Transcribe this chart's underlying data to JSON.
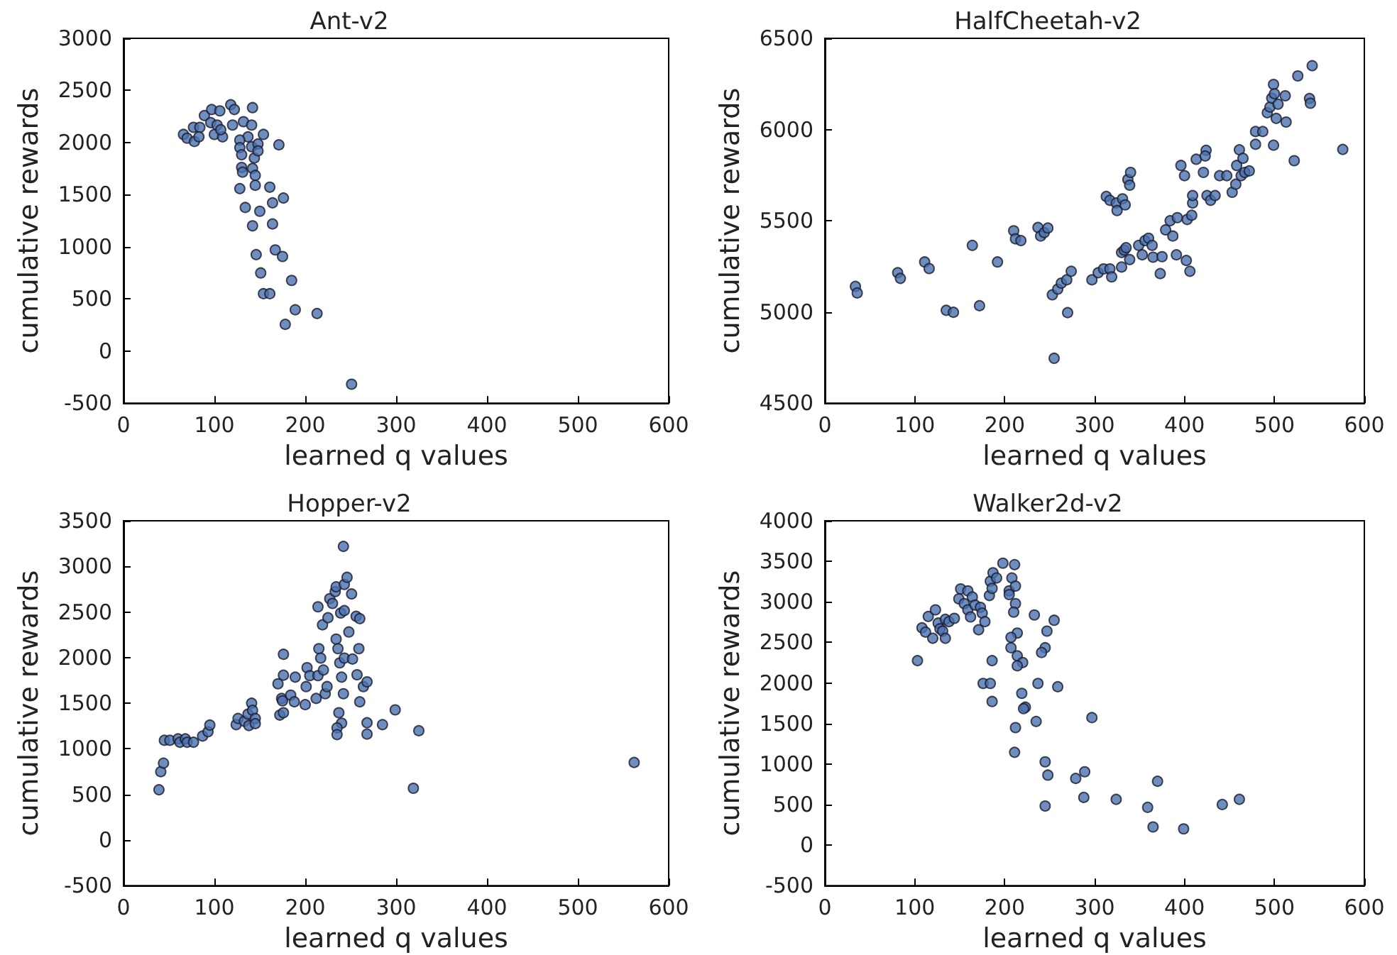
{
  "chart_data": [
    {
      "type": "scatter",
      "title": "Ant-v2",
      "xlabel": "learned q values",
      "ylabel": "cumulative rewards",
      "xlim": [
        0,
        600
      ],
      "xticks": [
        0,
        100,
        200,
        300,
        400,
        500,
        600
      ],
      "ylim": [
        -500,
        3000
      ],
      "yticks": [
        -500,
        0,
        500,
        1000,
        1500,
        2000,
        2500,
        3000
      ],
      "grid": false,
      "marker": "circle",
      "series": [
        {
          "color": "#4a72b0",
          "x": [
            66,
            70,
            78,
            77,
            84,
            83,
            89,
            97,
            96,
            100,
            103,
            106,
            109,
            107,
            118,
            122,
            120,
            132,
            142,
            141,
            137,
            154,
            128,
            128,
            141,
            148,
            171,
            130,
            144,
            148,
            130,
            131,
            142,
            145,
            128,
            145,
            161,
            176,
            134,
            164,
            150,
            142,
            164,
            146,
            167,
            175,
            151,
            185,
            154,
            161,
            189,
            213,
            178,
            251
          ],
          "values": [
            2078,
            2042,
            2010,
            2146,
            2146,
            2055,
            2259,
            2317,
            2191,
            2078,
            2168,
            2304,
            2055,
            2123,
            2363,
            2317,
            2168,
            2200,
            2335,
            2168,
            2055,
            2078,
            2024,
            1951,
            1960,
            1987,
            1978,
            1883,
            1852,
            1920,
            1761,
            1716,
            1752,
            1685,
            1558,
            1590,
            1572,
            1468,
            1377,
            1422,
            1341,
            1201,
            1219,
            925,
            970,
            907,
            749,
            677,
            550,
            550,
            396,
            360,
            256,
            -318
          ]
        }
      ]
    },
    {
      "type": "scatter",
      "title": "HalfCheetah-v2",
      "xlabel": "learned q values",
      "ylabel": "cumulative rewards",
      "xlim": [
        0,
        600
      ],
      "xticks": [
        0,
        100,
        200,
        300,
        400,
        500,
        600
      ],
      "ylim": [
        4500,
        6500
      ],
      "yticks": [
        4500,
        5000,
        5500,
        6000,
        6500
      ],
      "grid": false,
      "marker": "circle",
      "series": [
        {
          "color": "#4a72b0",
          "x": [
            34,
            36,
            81,
            84,
            111,
            116,
            135,
            143,
            164,
            172,
            192,
            210,
            212,
            218,
            237,
            240,
            244,
            248,
            253,
            259,
            263,
            255,
            269,
            270,
            274,
            297,
            304,
            310,
            317,
            319,
            313,
            317,
            324,
            325,
            330,
            330,
            333,
            331,
            334,
            337,
            339,
            340,
            335,
            339,
            349,
            353,
            356,
            360,
            364,
            365,
            373,
            375,
            379,
            384,
            387,
            391,
            392,
            396,
            400,
            402,
            403,
            406,
            408,
            409,
            409,
            413,
            421,
            424,
            423,
            425,
            429,
            434,
            439,
            447,
            453,
            458,
            457,
            461,
            465,
            463,
            467,
            472,
            479,
            479,
            487,
            492,
            495,
            497,
            499,
            500,
            499,
            502,
            504,
            512,
            513,
            522,
            526,
            539,
            540,
            542,
            576
          ],
          "values": [
            5140,
            5104,
            5215,
            5184,
            5274,
            5238,
            5009,
            4998,
            5365,
            5034,
            5274,
            5445,
            5401,
            5391,
            5463,
            5416,
            5435,
            5460,
            5094,
            5125,
            5158,
            4746,
            5176,
            4996,
            5223,
            5176,
            5215,
            5236,
            5236,
            5192,
            5633,
            5612,
            5597,
            5556,
            5246,
            5326,
            5339,
            5620,
            5587,
            5726,
            5695,
            5765,
            5352,
            5287,
            5365,
            5313,
            5391,
            5404,
            5365,
            5300,
            5210,
            5303,
            5450,
            5500,
            5416,
            5313,
            5517,
            5803,
            5747,
            5282,
            5507,
            5223,
            5530,
            5597,
            5638,
            5837,
            5765,
            5886,
            5855,
            5638,
            5612,
            5638,
            5747,
            5747,
            5656,
            5803,
            5700,
            5889,
            5842,
            5747,
            5765,
            5773,
            5989,
            5919,
            5989,
            6092,
            6123,
            6172,
            6247,
            6196,
            5914,
            6061,
            6139,
            6185,
            6041,
            5829,
            6294,
            6170,
            6144,
            6350,
            5891
          ]
        }
      ]
    },
    {
      "type": "scatter",
      "title": "Hopper-v2",
      "xlabel": "learned q values",
      "ylabel": "cumulative rewards",
      "xlim": [
        0,
        600
      ],
      "xticks": [
        0,
        100,
        200,
        300,
        400,
        500,
        600
      ],
      "ylim": [
        -500,
        3500
      ],
      "yticks": [
        -500,
        0,
        500,
        1000,
        1500,
        2000,
        2500,
        3000,
        3500
      ],
      "grid": false,
      "marker": "circle",
      "series": [
        {
          "color": "#4a72b0",
          "x": [
            39,
            41,
            44,
            45,
            51,
            60,
            62,
            68,
            70,
            77,
            87,
            93,
            95,
            124,
            126,
            133,
            137,
            138,
            141,
            142,
            145,
            145,
            172,
            176,
            174,
            175,
            170,
            176,
            176,
            184,
            188,
            189,
            200,
            201,
            202,
            205,
            212,
            214,
            214,
            215,
            217,
            219,
            220,
            222,
            224,
            225,
            227,
            230,
            233,
            234,
            234,
            236,
            238,
            239,
            240,
            242,
            243,
            243,
            243,
            242,
            246,
            248,
            251,
            252,
            256,
            260,
            259,
            257,
            264,
            268,
            260,
            237,
            240,
            235,
            235,
            268,
            268,
            285,
            299,
            325,
            319,
            562
          ],
          "values": [
            551,
            749,
            843,
            1093,
            1093,
            1109,
            1072,
            1109,
            1072,
            1072,
            1140,
            1187,
            1260,
            1265,
            1333,
            1302,
            1380,
            1255,
            1500,
            1422,
            1333,
            1276,
            1370,
            1396,
            1552,
            1526,
            1713,
            1807,
            2036,
            1588,
            1515,
            1786,
            1484,
            1682,
            1890,
            1802,
            1552,
            2557,
            1802,
            2098,
            1995,
            2359,
            1864,
            1604,
            1682,
            2437,
            2646,
            2594,
            2724,
            2776,
            2203,
            2098,
            1942,
            2489,
            1786,
            3219,
            2802,
            2515,
            1995,
            1604,
            2880,
            2281,
            2698,
            1984,
            2453,
            2427,
            2098,
            1812,
            1682,
            1734,
            1515,
            1396,
            1281,
            1229,
            1156,
            1286,
            1161,
            1265,
            1427,
            1198,
            567,
            850
          ]
        }
      ]
    },
    {
      "type": "scatter",
      "title": "Walker2d-v2",
      "xlabel": "learned q values",
      "ylabel": "cumulative rewards",
      "xlim": [
        0,
        600
      ],
      "xticks": [
        0,
        100,
        200,
        300,
        400,
        500,
        600
      ],
      "ylim": [
        -500,
        4000
      ],
      "yticks": [
        -500,
        0,
        500,
        1000,
        1500,
        2000,
        2500,
        3000,
        3500,
        4000
      ],
      "grid": false,
      "marker": "circle",
      "series": [
        {
          "color": "#4a72b0",
          "x": [
            103,
            108,
            112,
            115,
            120,
            123,
            126,
            128,
            131,
            134,
            134,
            138,
            144,
            149,
            151,
            155,
            159,
            159,
            162,
            164,
            167,
            171,
            173,
            175,
            178,
            183,
            184,
            186,
            187,
            191,
            186,
            176,
            184,
            186,
            198,
            211,
            205,
            205,
            208,
            212,
            212,
            210,
            214,
            207,
            207,
            214,
            220,
            214,
            219,
            223,
            221,
            212,
            211,
            233,
            247,
            255,
            245,
            241,
            237,
            259,
            235,
            297,
            245,
            248,
            245,
            279,
            289,
            288,
            324,
            359,
            365,
            370,
            399,
            442,
            461
          ],
          "values": [
            2275,
            2680,
            2627,
            2820,
            2551,
            2902,
            2738,
            2668,
            2639,
            2551,
            2785,
            2756,
            2797,
            3037,
            3160,
            2978,
            3136,
            2902,
            2814,
            3060,
            2961,
            2656,
            2932,
            2861,
            2756,
            3078,
            3254,
            3166,
            3359,
            3295,
            2275,
            1994,
            1994,
            1771,
            3477,
            3459,
            3136,
            3090,
            3295,
            3195,
            2978,
            2873,
            2615,
            2562,
            2434,
            2334,
            2252,
            2211,
            1871,
            1701,
            1683,
            1449,
            1144,
            2838,
            2639,
            2773,
            2434,
            2375,
            1994,
            1953,
            1525,
            1572,
            1027,
            863,
            482,
            822,
            904,
            588,
            564,
            465,
            224,
            787,
            200,
            500,
            564
          ]
        }
      ]
    }
  ]
}
